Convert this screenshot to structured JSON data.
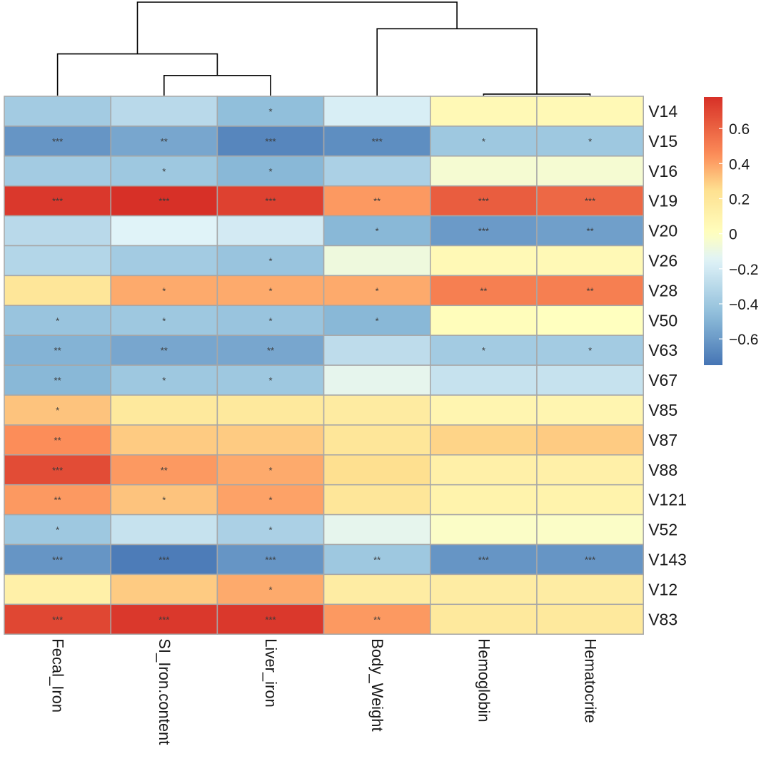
{
  "chart_data": {
    "type": "heatmap",
    "title": "",
    "columns": [
      "Fecal_Iron",
      "SI_Iron.content",
      "Liver_iron",
      "Body_Weight",
      "Hemoglobin",
      "Hematocrite"
    ],
    "rows": [
      "V14",
      "V15",
      "V16",
      "V19",
      "V20",
      "V26",
      "V28",
      "V50",
      "V63",
      "V67",
      "V85",
      "V87",
      "V88",
      "V121",
      "V52",
      "V143",
      "V12",
      "V83"
    ],
    "values": [
      [
        -0.38,
        -0.3,
        -0.45,
        -0.18,
        0.05,
        0.05
      ],
      [
        -0.62,
        -0.55,
        -0.68,
        -0.65,
        -0.4,
        -0.4
      ],
      [
        -0.38,
        -0.4,
        -0.48,
        -0.35,
        -0.05,
        -0.05
      ],
      [
        0.75,
        0.78,
        0.72,
        0.42,
        0.62,
        0.58
      ],
      [
        -0.3,
        -0.15,
        -0.2,
        -0.48,
        -0.6,
        -0.58
      ],
      [
        -0.32,
        -0.38,
        -0.42,
        -0.08,
        0.05,
        0.05
      ],
      [
        0.2,
        0.38,
        0.38,
        0.38,
        0.5,
        0.5
      ],
      [
        -0.42,
        -0.4,
        -0.42,
        -0.48,
        0.02,
        0.0
      ],
      [
        -0.5,
        -0.55,
        -0.55,
        -0.28,
        -0.38,
        -0.38
      ],
      [
        -0.48,
        -0.4,
        -0.4,
        -0.12,
        -0.25,
        -0.25
      ],
      [
        0.32,
        0.18,
        0.18,
        0.16,
        0.08,
        0.08
      ],
      [
        0.45,
        0.3,
        0.3,
        0.2,
        0.28,
        0.3
      ],
      [
        0.68,
        0.42,
        0.38,
        0.25,
        0.12,
        0.12
      ],
      [
        0.42,
        0.32,
        0.4,
        0.2,
        0.1,
        0.1
      ],
      [
        -0.4,
        -0.25,
        -0.35,
        -0.12,
        -0.02,
        -0.02
      ],
      [
        -0.62,
        -0.72,
        -0.62,
        -0.4,
        -0.62,
        -0.62
      ],
      [
        0.12,
        0.3,
        0.38,
        0.15,
        0.15,
        0.15
      ],
      [
        0.7,
        0.75,
        0.75,
        0.42,
        0.18,
        0.18
      ]
    ],
    "stars": [
      [
        "",
        "",
        "*",
        "",
        "",
        ""
      ],
      [
        "***",
        "**",
        "***",
        "***",
        "*",
        "*"
      ],
      [
        "",
        "*",
        "*",
        "",
        "",
        ""
      ],
      [
        "***",
        "***",
        "***",
        "**",
        "***",
        "***"
      ],
      [
        "",
        "",
        "",
        "*",
        "***",
        "**"
      ],
      [
        "",
        "",
        "*",
        "",
        "",
        ""
      ],
      [
        "",
        "*",
        "*",
        "*",
        "**",
        "**"
      ],
      [
        "*",
        "*",
        "*",
        "*",
        "",
        ""
      ],
      [
        "**",
        "**",
        "**",
        "",
        "*",
        "*"
      ],
      [
        "**",
        "*",
        "*",
        "",
        "",
        ""
      ],
      [
        "*",
        "",
        "",
        "",
        "",
        ""
      ],
      [
        "**",
        "",
        "",
        "",
        "",
        ""
      ],
      [
        "***",
        "**",
        "*",
        "",
        "",
        ""
      ],
      [
        "**",
        "*",
        "*",
        "",
        "",
        ""
      ],
      [
        "*",
        "",
        "*",
        "",
        "",
        ""
      ],
      [
        "***",
        "***",
        "***",
        "**",
        "***",
        "***"
      ],
      [
        "",
        "",
        "*",
        "",
        "",
        ""
      ],
      [
        "***",
        "***",
        "***",
        "**",
        "",
        ""
      ]
    ],
    "column_dendrogram": {
      "merges": [
        [
          4,
          5,
          0.02
        ],
        [
          1,
          2,
          0.28
        ],
        [
          0,
          "m1",
          0.58
        ],
        [
          3,
          "m0",
          0.93
        ],
        [
          "m2",
          "m3",
          1.3
        ]
      ],
      "max_height": 1.3
    },
    "row_dendrogram": "none",
    "color_scale": {
      "min": -0.75,
      "max": 0.78,
      "stops": [
        {
          "value": -0.75,
          "color": "#4575b4"
        },
        {
          "value": -0.45,
          "color": "#91bfdb"
        },
        {
          "value": -0.15,
          "color": "#e0f3f8"
        },
        {
          "value": 0.0,
          "color": "#ffffbf"
        },
        {
          "value": 0.25,
          "color": "#fee090"
        },
        {
          "value": 0.45,
          "color": "#fc8d59"
        },
        {
          "value": 0.78,
          "color": "#d73027"
        }
      ]
    },
    "legend": {
      "position": "right",
      "ticks": [
        {
          "value": 0.6,
          "label": "0.6"
        },
        {
          "value": 0.4,
          "label": "0.4"
        },
        {
          "value": 0.2,
          "label": "0.2"
        },
        {
          "value": 0,
          "label": "0"
        },
        {
          "value": -0.2,
          "label": "−0.2"
        },
        {
          "value": -0.4,
          "label": "−0.4"
        },
        {
          "value": -0.6,
          "label": "−0.6"
        }
      ]
    },
    "grid": true
  },
  "colors": {
    "cell_border": "#a7a7a7",
    "dendrogram_line": "#000000",
    "text": "#1a1a1a"
  }
}
